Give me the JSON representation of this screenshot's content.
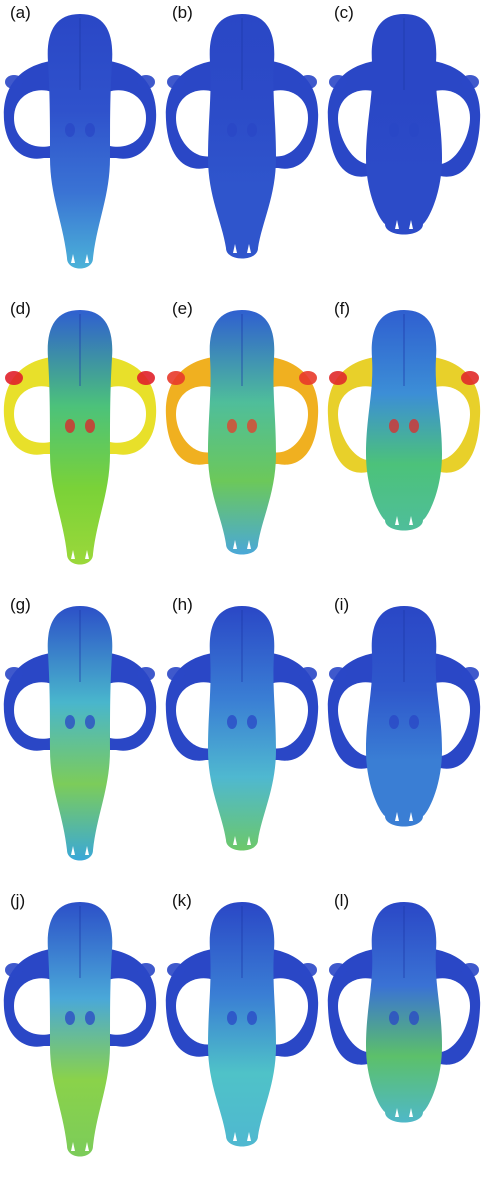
{
  "figure": {
    "panels": [
      {
        "label": "(a)",
        "shape": "long",
        "colors": {
          "cranium": "#2a47c6",
          "arch": "#2a47c6",
          "body": "#2f52cc",
          "bodyMid": "#3a73d4",
          "snout": "#4bb2d8",
          "spot": "#2a47c6"
        }
      },
      {
        "label": "(b)",
        "shape": "mid",
        "colors": {
          "cranium": "#2a47c6",
          "arch": "#2a47c6",
          "body": "#2c4bc8",
          "bodyMid": "#2f55cc",
          "snout": "#2f55cc",
          "spot": "#2a47c6"
        }
      },
      {
        "label": "(c)",
        "shape": "short",
        "colors": {
          "cranium": "#2a47c6",
          "arch": "#2a47c6",
          "body": "#2a47c6",
          "bodyMid": "#2c4bc8",
          "snout": "#2c4bc8",
          "spot": "#2a47c6"
        }
      },
      {
        "label": "(d)",
        "shape": "long",
        "colors": {
          "cranium": "#2f5fd0",
          "arch": "#e8e02a",
          "body": "#4cc27a",
          "bodyMid": "#7ad238",
          "snout": "#9bd83a",
          "spot": "#e0202a"
        }
      },
      {
        "label": "(e)",
        "shape": "mid",
        "colors": {
          "cranium": "#2f5fd0",
          "arch": "#f0b020",
          "body": "#4fbe9a",
          "bodyMid": "#6cc85a",
          "snout": "#4aa8d8",
          "spot": "#e83a2a"
        }
      },
      {
        "label": "(f)",
        "shape": "short",
        "colors": {
          "cranium": "#2f5fd0",
          "arch": "#e8d02a",
          "body": "#3c8ed6",
          "bodyMid": "#4cc27a",
          "snout": "#4fbe9a",
          "spot": "#e02a2a"
        }
      },
      {
        "label": "(g)",
        "shape": "long",
        "colors": {
          "cranium": "#2c50c8",
          "arch": "#2a47c6",
          "body": "#49b6cc",
          "bodyMid": "#7ccc5a",
          "snout": "#3aa8d8",
          "spot": "#2a47c6"
        }
      },
      {
        "label": "(h)",
        "shape": "mid",
        "colors": {
          "cranium": "#2a47c6",
          "arch": "#2a47c6",
          "body": "#3a7ed4",
          "bodyMid": "#4fb8d0",
          "snout": "#6cc86a",
          "spot": "#2a47c6"
        }
      },
      {
        "label": "(i)",
        "shape": "short",
        "colors": {
          "cranium": "#2a47c6",
          "arch": "#2a47c6",
          "body": "#2f58cc",
          "bodyMid": "#3a7ed4",
          "snout": "#3a7ed4",
          "spot": "#2a47c6"
        }
      },
      {
        "label": "(j)",
        "shape": "long",
        "colors": {
          "cranium": "#2c50c8",
          "arch": "#2a47c6",
          "body": "#4aa8d8",
          "bodyMid": "#8ad24a",
          "snout": "#7ccc5a",
          "spot": "#2a47c6"
        }
      },
      {
        "label": "(k)",
        "shape": "mid",
        "colors": {
          "cranium": "#2a47c6",
          "arch": "#2a47c6",
          "body": "#3a7ed4",
          "bodyMid": "#4fc2c8",
          "snout": "#4fb8d0",
          "spot": "#2a47c6"
        }
      },
      {
        "label": "(l)",
        "shape": "short",
        "colors": {
          "cranium": "#2a47c6",
          "arch": "#2a47c6",
          "body": "#3a72d4",
          "bodyMid": "#5cc06a",
          "snout": "#4fb8c8",
          "spot": "#2a47c6"
        }
      }
    ]
  }
}
